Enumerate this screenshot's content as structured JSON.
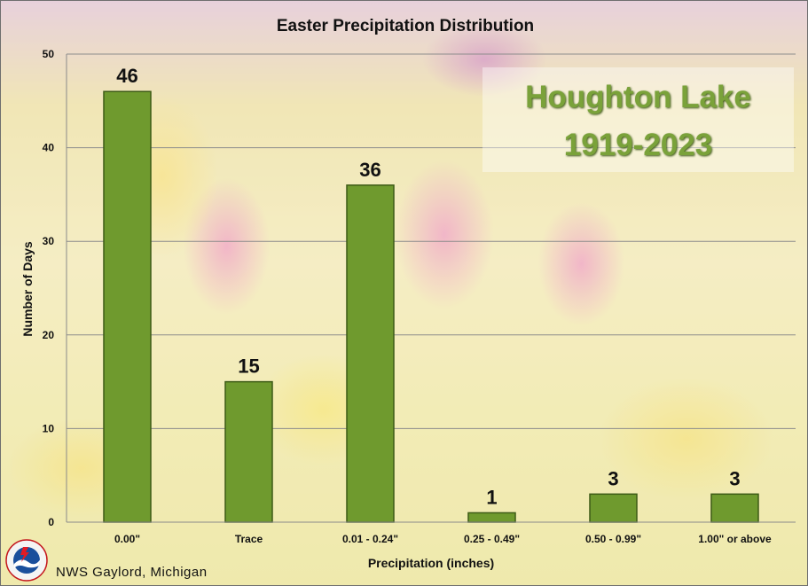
{
  "chart_data": {
    "type": "bar",
    "title": "Easter Precipitation Distribution",
    "xlabel": "Precipitation (inches)",
    "ylabel": "Number of Days",
    "categories": [
      "0.00\"",
      "Trace",
      "0.01 - 0.24\"",
      "0.25 - 0.49\"",
      "0.50 - 0.99\"",
      "1.00\" or above"
    ],
    "values": [
      46,
      15,
      36,
      1,
      3,
      3
    ],
    "ylim": [
      0,
      50
    ],
    "yticks": [
      0,
      10,
      20,
      30,
      40,
      50
    ],
    "grid": true,
    "bar_color": "#6f9a2e",
    "bar_edge_color": "#3d5b16"
  },
  "annotation": {
    "location": "Houghton Lake",
    "period": "1919-2023",
    "text_color": "#7aa23a"
  },
  "credit": "NWS Gaylord, Michigan",
  "logo_icon": "nws-logo-icon"
}
